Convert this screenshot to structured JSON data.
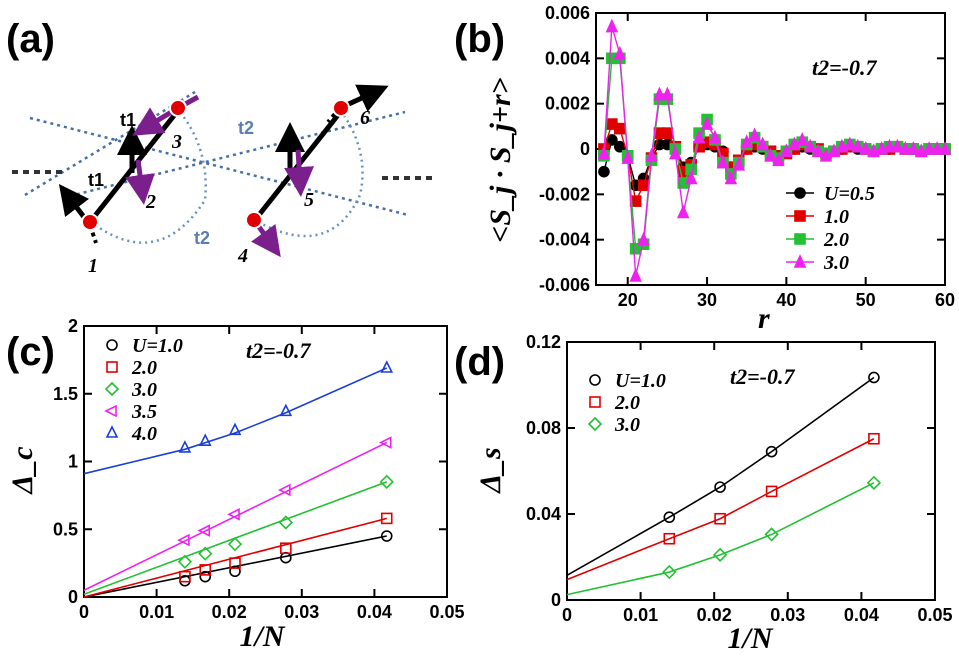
{
  "panel_labels": [
    "(a)",
    "(b)",
    "(c)",
    "(d)"
  ],
  "diagram": {
    "sites": [
      "1",
      "2",
      "3",
      "4",
      "5",
      "6"
    ],
    "hoppings": [
      "t1",
      "t1",
      "t2",
      "t2"
    ],
    "colors": {
      "spin_black": "#000000",
      "spin_purple": "#7b1f8c",
      "site": "#e00000",
      "bond": "#4a6fa5"
    }
  },
  "chart_data": [
    {
      "id": "b",
      "type": "line",
      "xlabel": "r",
      "ylabel": "<S_j · S_j+r>",
      "annotation": "t2=-0.7",
      "xlim": [
        16,
        60
      ],
      "ylim": [
        -0.006,
        0.006
      ],
      "xticks": [
        "20",
        "30",
        "40",
        "50",
        "60"
      ],
      "yticks": [
        "-0.006",
        "-0.004",
        "-0.002",
        "0",
        "0.002",
        "0.004",
        "0.006"
      ],
      "legend_position": "bottom-right",
      "x": [
        17,
        18,
        19,
        20,
        21,
        22,
        23,
        24,
        25,
        26,
        27,
        28,
        29,
        30,
        31,
        32,
        33,
        34,
        35,
        36,
        37,
        38,
        39,
        40,
        41,
        42,
        43,
        44,
        45,
        46,
        47,
        48,
        49,
        50,
        51,
        52,
        53,
        54,
        55,
        56,
        57,
        58,
        59,
        60
      ],
      "series": [
        {
          "name": "U=0.5",
          "color": "#000000",
          "marker": "circle",
          "values": [
            -0.001,
            0.0004,
            0.0001,
            -0.0003,
            -0.0016,
            -0.0013,
            -0.0004,
            0.0002,
            0.0002,
            0.0001,
            -0.0008,
            -0.0006,
            0.0001,
            0.0002,
            0.0001,
            -0.0001,
            -0.0008,
            -0.0005,
            0.0,
            0.0001,
            0.0,
            -0.0001,
            -0.0003,
            -0.0001,
            0.0,
            0.0001,
            0.0,
            0.0,
            -0.0002,
            -0.0001,
            0.0,
            0.0001,
            0.0,
            0.0,
            -0.0001,
            0.0,
            0.0,
            0.0001,
            0.0,
            0.0,
            -0.0001,
            0.0,
            0.0,
            0.0
          ]
        },
        {
          "name": "1.0",
          "color": "#e00000",
          "marker": "square",
          "values": [
            0.0,
            0.0011,
            0.0009,
            -0.0003,
            -0.0023,
            -0.0016,
            -0.0004,
            0.0007,
            0.0007,
            0.0001,
            -0.001,
            -0.0007,
            0.0001,
            0.0003,
            0.0002,
            -0.0002,
            -0.0008,
            -0.0005,
            0.0,
            0.0002,
            0.0001,
            -0.0001,
            -0.0003,
            -0.0002,
            0.0,
            0.0002,
            0.0001,
            0.0,
            -0.0002,
            -0.0001,
            0.0,
            0.0001,
            0.0001,
            0.0,
            -0.0001,
            0.0,
            0.0,
            0.0001,
            0.0,
            0.0,
            -0.0001,
            0.0,
            0.0,
            0.0
          ]
        },
        {
          "name": "2.0",
          "color": "#22c033",
          "marker": "square",
          "values": [
            -0.0003,
            0.004,
            0.004,
            -0.0003,
            -0.0044,
            -0.0042,
            -0.0005,
            0.0022,
            0.0022,
            0.0,
            -0.0015,
            -0.0009,
            0.0007,
            0.0013,
            0.0004,
            -0.0006,
            -0.0011,
            -0.0006,
            0.0002,
            0.0005,
            0.0001,
            -0.0003,
            -0.0004,
            -0.0001,
            0.0002,
            0.0003,
            0.0001,
            -0.0001,
            -0.0002,
            -0.0001,
            0.0001,
            0.0002,
            0.0001,
            0.0,
            -0.0001,
            0.0,
            0.0001,
            0.0001,
            0.0,
            0.0,
            -0.0001,
            0.0,
            0.0,
            0.0
          ]
        },
        {
          "name": "3.0",
          "color": "#ee22ee",
          "marker": "triangle",
          "values": [
            -0.0002,
            0.0054,
            0.0042,
            -0.0004,
            -0.0056,
            -0.004,
            -0.0003,
            0.0024,
            0.0024,
            -0.0002,
            -0.0028,
            -0.0013,
            0.0005,
            0.0011,
            0.0005,
            -0.0006,
            -0.0013,
            -0.0007,
            0.0003,
            0.0006,
            0.0002,
            -0.0003,
            -0.0005,
            -0.0001,
            0.0002,
            0.0004,
            0.0001,
            -0.0001,
            -0.0003,
            -0.0001,
            0.0001,
            0.0002,
            0.0001,
            0.0,
            -0.0001,
            0.0,
            0.0001,
            0.0001,
            0.0,
            0.0,
            -0.0001,
            0.0,
            0.0,
            0.0
          ]
        }
      ]
    },
    {
      "id": "c",
      "type": "line",
      "xlabel": "1/N",
      "ylabel": "Δ_c",
      "annotation": "t2=-0.7",
      "xlim": [
        0,
        0.05
      ],
      "ylim": [
        0,
        2
      ],
      "xticks": [
        "0",
        "0.01",
        "0.02",
        "0.03",
        "0.04",
        "0.05"
      ],
      "yticks": [
        "0",
        "0.5",
        "1",
        "1.5",
        "2"
      ],
      "legend_position": "top-left",
      "series": [
        {
          "name": "U=1.0",
          "color": "#000000",
          "marker": "circle",
          "x": [
            0.0139,
            0.0167,
            0.0208,
            0.0278,
            0.0417
          ],
          "values": [
            0.12,
            0.15,
            0.19,
            0.29,
            0.45
          ],
          "fit_x": [
            0,
            0.0417
          ],
          "fit_y": [
            0.0,
            0.45
          ]
        },
        {
          "name": "2.0",
          "color": "#e00000",
          "marker": "square",
          "x": [
            0.0139,
            0.0167,
            0.0208,
            0.0278,
            0.0417
          ],
          "values": [
            0.15,
            0.2,
            0.25,
            0.36,
            0.58
          ],
          "fit_x": [
            0,
            0.0417
          ],
          "fit_y": [
            0.0,
            0.58
          ]
        },
        {
          "name": "3.0",
          "color": "#22c033",
          "marker": "diamond",
          "x": [
            0.0139,
            0.0167,
            0.0208,
            0.0278,
            0.0417
          ],
          "values": [
            0.26,
            0.32,
            0.39,
            0.55,
            0.85
          ],
          "fit_x": [
            0,
            0.0417
          ],
          "fit_y": [
            0.02,
            0.85
          ]
        },
        {
          "name": "3.5",
          "color": "#ee22ee",
          "marker": "triangle-left",
          "x": [
            0.0139,
            0.0167,
            0.0208,
            0.0278,
            0.0417
          ],
          "values": [
            0.42,
            0.49,
            0.61,
            0.79,
            1.14
          ],
          "fit_x": [
            0,
            0.0417
          ],
          "fit_y": [
            0.05,
            1.14
          ]
        },
        {
          "name": "4.0",
          "color": "#1a3fd6",
          "marker": "triangle-up",
          "x": [
            0.0139,
            0.0167,
            0.0208,
            0.0278,
            0.0417
          ],
          "values": [
            1.1,
            1.15,
            1.23,
            1.37,
            1.69
          ],
          "fit_x": [
            0,
            0.0139,
            0.0208,
            0.0278,
            0.0417
          ],
          "fit_y": [
            0.91,
            1.09,
            1.21,
            1.36,
            1.69
          ]
        }
      ]
    },
    {
      "id": "d",
      "type": "line",
      "xlabel": "1/N",
      "ylabel": "Δ_s",
      "annotation": "t2=-0.7",
      "xlim": [
        0,
        0.05
      ],
      "ylim": [
        0,
        0.12
      ],
      "xticks": [
        "0",
        "0.01",
        "0.02",
        "0.03",
        "0.04",
        "0.05"
      ],
      "yticks": [
        "0",
        "0.04",
        "0.08",
        "0.12"
      ],
      "legend_position": "top-left",
      "series": [
        {
          "name": "U=1.0",
          "color": "#000000",
          "marker": "circle",
          "x": [
            0.0139,
            0.0208,
            0.0278,
            0.0417
          ],
          "values": [
            0.0385,
            0.0525,
            0.069,
            0.1035
          ],
          "fit_x": [
            0,
            0.0139,
            0.0208,
            0.0278,
            0.0417
          ],
          "fit_y": [
            0.0115,
            0.0385,
            0.0525,
            0.069,
            0.1035
          ]
        },
        {
          "name": "2.0",
          "color": "#e00000",
          "marker": "square",
          "x": [
            0.0139,
            0.0208,
            0.0278,
            0.0417
          ],
          "values": [
            0.0285,
            0.0378,
            0.0505,
            0.075
          ],
          "fit_x": [
            0,
            0.0139,
            0.0208,
            0.0278,
            0.0417
          ],
          "fit_y": [
            0.0095,
            0.0285,
            0.0378,
            0.0505,
            0.075
          ]
        },
        {
          "name": "3.0",
          "color": "#22c033",
          "marker": "diamond",
          "x": [
            0.0139,
            0.0208,
            0.0278,
            0.0417
          ],
          "values": [
            0.013,
            0.021,
            0.0305,
            0.0545
          ],
          "fit_x": [
            0,
            0.0139,
            0.0208,
            0.0278,
            0.0417
          ],
          "fit_y": [
            0.0025,
            0.013,
            0.021,
            0.0305,
            0.0545
          ]
        }
      ]
    }
  ]
}
